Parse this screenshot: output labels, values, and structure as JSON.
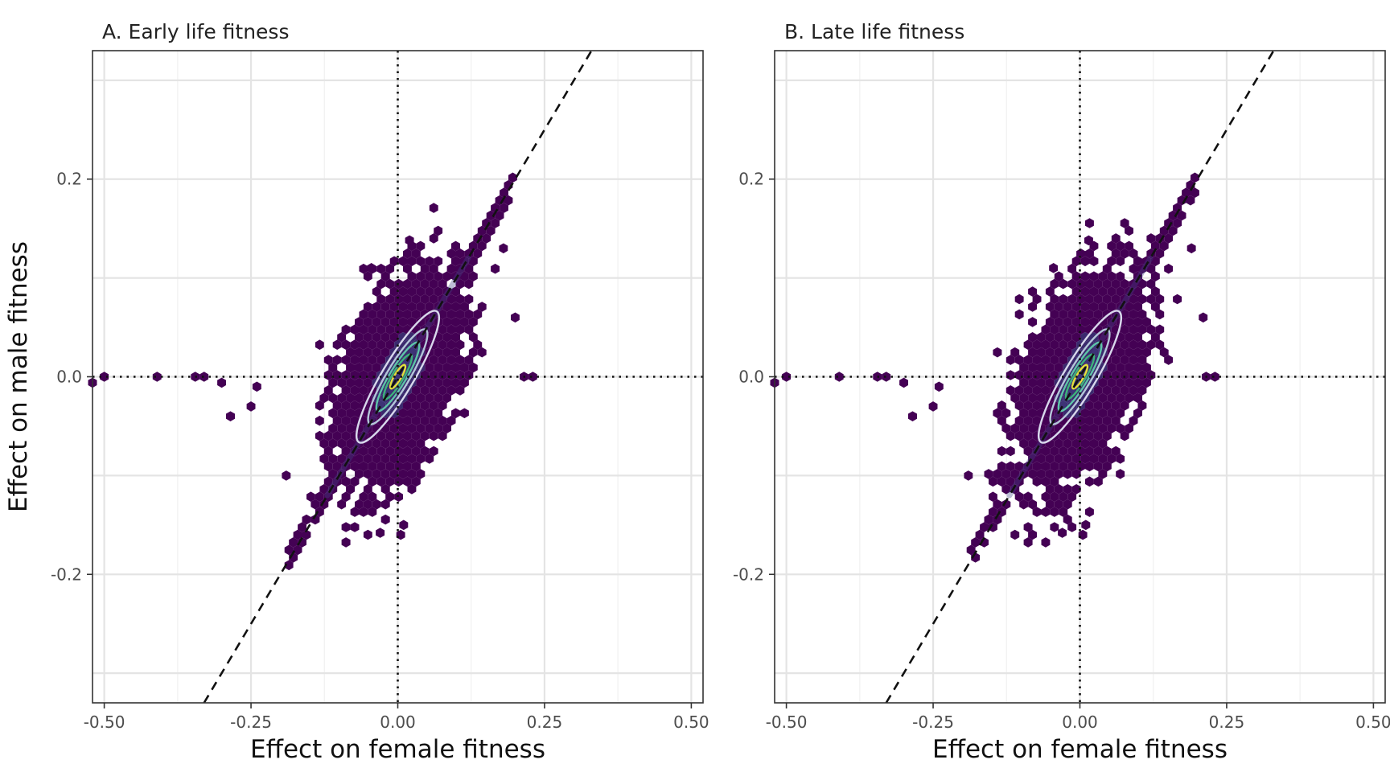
{
  "chart_data": [
    {
      "type": "hexbin-scatter",
      "title": "A. Early life fitness",
      "xlabel": "Effect on female fitness",
      "ylabel": "Effect on male fitness",
      "xlim": [
        -0.52,
        0.52
      ],
      "ylim": [
        -0.33,
        0.33
      ],
      "x_ticks": [
        -0.5,
        -0.25,
        0.0,
        0.25,
        0.5
      ],
      "x_tick_labels": [
        "-0.50",
        "-0.25",
        "0.00",
        "0.25",
        "0.50"
      ],
      "y_ticks": [
        -0.2,
        0.0,
        0.2
      ],
      "y_tick_labels": [
        "-0.2",
        "0.0",
        "0.2"
      ],
      "grid": true,
      "reference_lines": {
        "horizontal_y": 0.0,
        "vertical_x": 0.0,
        "style": "dotted"
      },
      "fit_line": {
        "slope": 1.0,
        "intercept": 0.0,
        "style": "dashed"
      },
      "cloud": {
        "center": [
          0.0,
          0.0
        ],
        "major_axis_angle_deg": 45,
        "major_sd": 0.082,
        "minor_sd": 0.052
      },
      "contours": [
        {
          "level": 1,
          "a": 0.1,
          "b": 0.021,
          "color": "#d8d8ec"
        },
        {
          "level": 2,
          "a": 0.072,
          "b": 0.015,
          "color": "#b4c6d9"
        },
        {
          "level": 3,
          "a": 0.052,
          "b": 0.011,
          "color": "#5ec4a8"
        },
        {
          "level": 4,
          "a": 0.034,
          "b": 0.0075,
          "color": "#3cb27b"
        },
        {
          "level": 5,
          "a": 0.018,
          "b": 0.0045,
          "color": "#e4e23a"
        }
      ],
      "outliers": [
        [
          -0.52,
          -0.006
        ],
        [
          -0.5,
          0.0
        ],
        [
          -0.41,
          0.0
        ],
        [
          -0.345,
          0.0
        ],
        [
          -0.33,
          0.0
        ],
        [
          -0.3,
          -0.006
        ],
        [
          -0.285,
          -0.04
        ],
        [
          -0.25,
          -0.03
        ],
        [
          -0.24,
          -0.01
        ],
        [
          0.18,
          0.13
        ],
        [
          0.2,
          0.06
        ],
        [
          0.215,
          0.0
        ],
        [
          0.23,
          0.0
        ],
        [
          -0.19,
          -0.1
        ],
        [
          0.02,
          0.138
        ],
        [
          -0.045,
          0.11
        ],
        [
          0.005,
          -0.16
        ],
        [
          -0.03,
          -0.158
        ],
        [
          0.01,
          -0.15
        ]
      ],
      "diagonal_arm": [
        -0.19,
        0.2
      ]
    },
    {
      "type": "hexbin-scatter",
      "title": "B. Late life fitness",
      "xlabel": "Effect on female fitness",
      "ylabel": "",
      "xlim": [
        -0.52,
        0.52
      ],
      "ylim": [
        -0.33,
        0.33
      ],
      "x_ticks": [
        -0.5,
        -0.25,
        0.0,
        0.25,
        0.5
      ],
      "x_tick_labels": [
        "-0.50",
        "-0.25",
        "0.00",
        "0.25",
        "0.50"
      ],
      "y_ticks": [
        -0.2,
        0.0,
        0.2
      ],
      "y_tick_labels": [
        "-0.2",
        "0.0",
        "0.2"
      ],
      "grid": true,
      "reference_lines": {
        "horizontal_y": 0.0,
        "vertical_x": 0.0,
        "style": "dotted"
      },
      "fit_line": {
        "slope": 1.0,
        "intercept": 0.0,
        "style": "dashed"
      },
      "cloud": {
        "center": [
          0.0,
          0.0
        ],
        "major_axis_angle_deg": 45,
        "major_sd": 0.082,
        "minor_sd": 0.052
      },
      "contours": [
        {
          "level": 1,
          "a": 0.1,
          "b": 0.021,
          "color": "#d8d8ec"
        },
        {
          "level": 2,
          "a": 0.072,
          "b": 0.015,
          "color": "#b4c6d9"
        },
        {
          "level": 3,
          "a": 0.052,
          "b": 0.011,
          "color": "#5ec4a8"
        },
        {
          "level": 4,
          "a": 0.034,
          "b": 0.0075,
          "color": "#3cb27b"
        },
        {
          "level": 5,
          "a": 0.018,
          "b": 0.0045,
          "color": "#e4e23a"
        }
      ],
      "outliers": [
        [
          -0.52,
          -0.006
        ],
        [
          -0.5,
          0.0
        ],
        [
          -0.41,
          0.0
        ],
        [
          -0.345,
          0.0
        ],
        [
          -0.33,
          0.0
        ],
        [
          -0.3,
          -0.006
        ],
        [
          -0.285,
          -0.04
        ],
        [
          -0.25,
          -0.03
        ],
        [
          -0.24,
          -0.01
        ],
        [
          0.19,
          0.13
        ],
        [
          0.21,
          0.06
        ],
        [
          0.215,
          0.0
        ],
        [
          0.23,
          0.0
        ],
        [
          -0.19,
          -0.1
        ],
        [
          0.015,
          0.138
        ],
        [
          -0.045,
          0.11
        ],
        [
          0.005,
          -0.16
        ],
        [
          -0.03,
          -0.158
        ],
        [
          0.01,
          -0.15
        ]
      ],
      "diagonal_arm": [
        -0.19,
        0.2
      ]
    }
  ],
  "colors": {
    "hex_fill": "#440154",
    "hex_fill_dense": "#3b2a6e",
    "ridge": "#414487",
    "grid": "#e4e4e4",
    "frame": "#333333"
  }
}
